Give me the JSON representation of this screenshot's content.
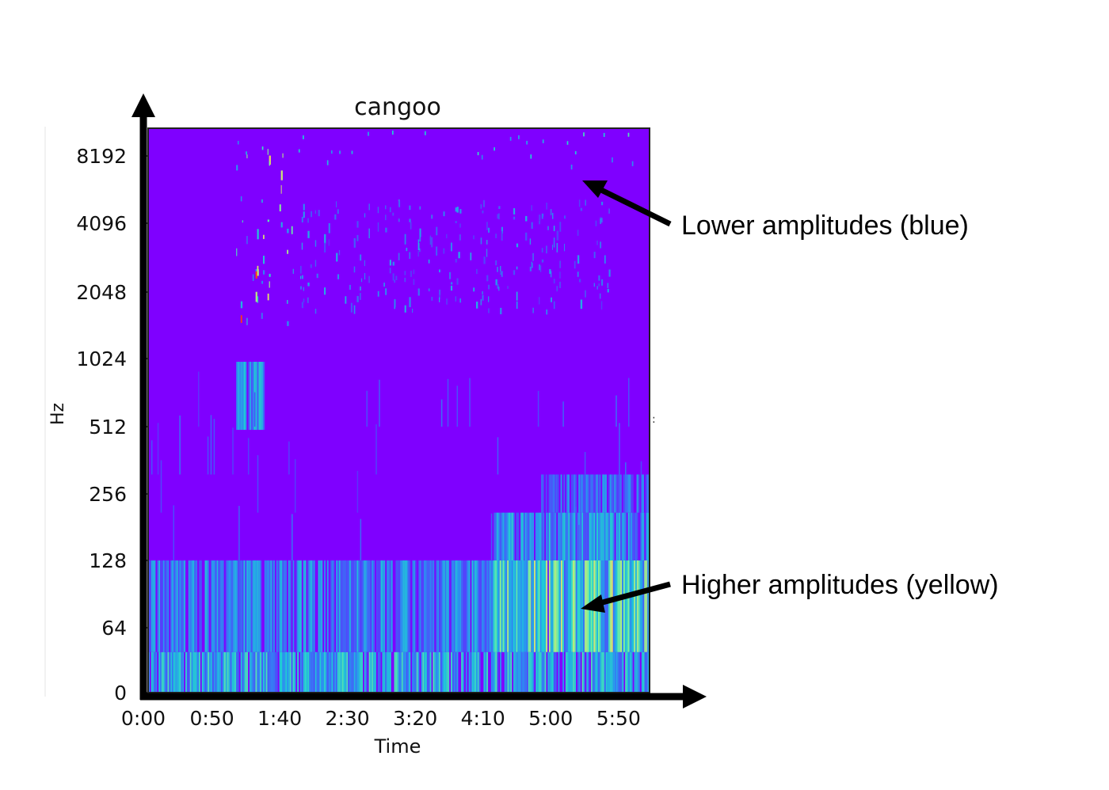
{
  "chart_data": {
    "type": "heatmap",
    "title": "cangoo",
    "xlabel": "Time",
    "ylabel": "Hz",
    "x_ticks": [
      "0:00",
      "0:50",
      "1:40",
      "2:30",
      "3:20",
      "4:10",
      "5:00",
      "5:50"
    ],
    "x_tick_seconds": [
      0,
      50,
      100,
      150,
      200,
      250,
      300,
      350
    ],
    "xlim_seconds": [
      0,
      370
    ],
    "y_ticks": [
      "0",
      "64",
      "128",
      "256",
      "512",
      "1024",
      "2048",
      "4096",
      "8192"
    ],
    "y_tick_hz": [
      0,
      64,
      128,
      256,
      512,
      1024,
      2048,
      4096,
      8192
    ],
    "y_scale": "log2 (mel-like)",
    "ylim_hz": [
      0,
      11025
    ],
    "colormap": "rainbow",
    "colors": {
      "background_low": "#7f00ff",
      "low": "#5a3dfb",
      "mid": "#1fb8e6",
      "high": "#d4e87a",
      "peak": "#ff2000",
      "arrow": "#000000"
    },
    "energy_regions": [
      {
        "t_start": 0,
        "t_end": 370,
        "f_low": 0,
        "f_high": 40,
        "level": 0.45
      },
      {
        "t_start": 0,
        "t_end": 370,
        "f_low": 40,
        "f_high": 128,
        "level": 0.35
      },
      {
        "t_start": 255,
        "t_end": 370,
        "f_low": 40,
        "f_high": 128,
        "level": 0.6
      },
      {
        "t_start": 255,
        "t_end": 370,
        "f_low": 128,
        "f_high": 220,
        "level": 0.4
      },
      {
        "t_start": 290,
        "t_end": 370,
        "f_low": 220,
        "f_high": 330,
        "level": 0.3
      },
      {
        "t_start": 65,
        "t_end": 110,
        "f_low": 1500,
        "f_high": 8800,
        "level": 0.6
      },
      {
        "t_start": 110,
        "t_end": 340,
        "f_low": 1700,
        "f_high": 5200,
        "level": 0.3
      },
      {
        "t_start": 65,
        "t_end": 85,
        "f_low": 500,
        "f_high": 1000,
        "level": 0.4
      }
    ]
  },
  "annotations": [
    {
      "text": "Lower amplitudes (blue)",
      "target": "high-frequency background region"
    },
    {
      "text": "Higher amplitudes (yellow)",
      "target": "low-frequency region after 4:10"
    }
  ]
}
